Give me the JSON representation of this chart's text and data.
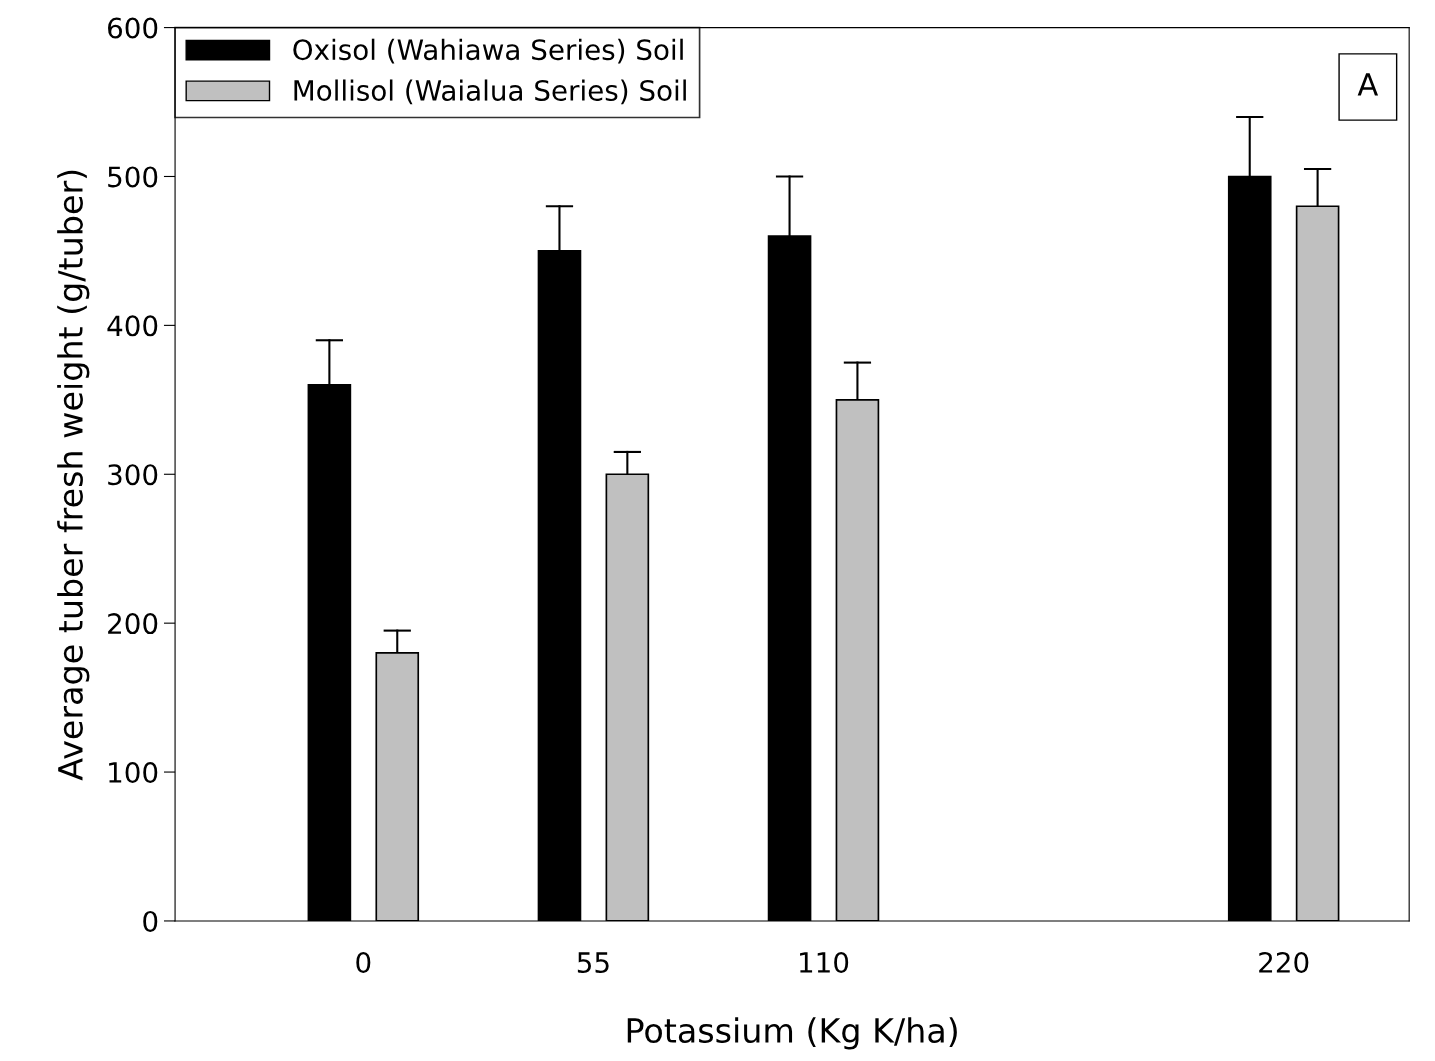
{
  "chart_data": {
    "type": "bar",
    "xlabel": "Potassium (Kg K/ha)",
    "ylabel": "Average tuber fresh weight (g/tuber)",
    "x": [
      0,
      55,
      110,
      220
    ],
    "series": [
      {
        "name": "Oxisol (Wahiawa Series) Soil",
        "color": "#000000",
        "values": [
          360,
          450,
          460,
          500
        ],
        "errors": [
          [
            360,
            390
          ],
          [
            450,
            480
          ],
          [
            460,
            500
          ],
          [
            500,
            540
          ]
        ]
      },
      {
        "name": "Mollisol (Waialua Series) Soil",
        "color": "#c0c0c0",
        "values": [
          180,
          300,
          350,
          480
        ],
        "errors": [
          [
            180,
            195
          ],
          [
            300,
            315
          ],
          [
            350,
            375
          ],
          [
            480,
            505
          ]
        ]
      }
    ],
    "xlim": [
      -45,
      250
    ],
    "xticks": [
      0,
      55,
      110,
      220
    ],
    "ylim": [
      0,
      600
    ],
    "yticks": [
      0,
      100,
      200,
      300,
      400,
      500,
      600
    ],
    "annotations": [
      "A"
    ],
    "legend": "top left",
    "grid": false
  }
}
